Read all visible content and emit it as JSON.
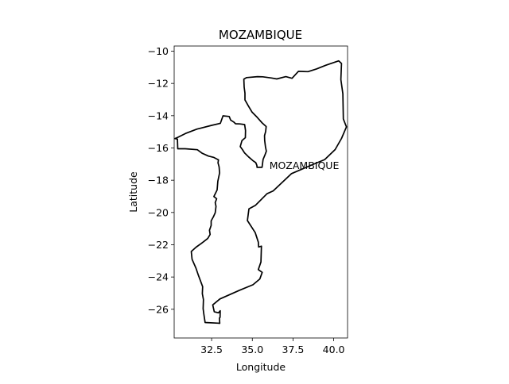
{
  "chart_data": {
    "type": "map",
    "title": "MOZAMBIQUE",
    "xlabel": "Longitude",
    "ylabel": "Latitude",
    "xlim": [
      30.2,
      40.85
    ],
    "ylim": [
      -27.78,
      -9.68
    ],
    "xticks": [
      32.5,
      35.0,
      37.5,
      40.0
    ],
    "xtick_labels": [
      "32.5",
      "35.0",
      "37.5",
      "40.0"
    ],
    "yticks": [
      -10,
      -12,
      -14,
      -16,
      -18,
      -20,
      -22,
      -24,
      -26
    ],
    "ytick_labels": [
      "−10",
      "−12",
      "−14",
      "−16",
      "−18",
      "−20",
      "−22",
      "−24",
      "−26"
    ],
    "grid": false,
    "region_label": {
      "text": "MOZAMBIQUE",
      "lon": 36.05,
      "lat": -17.3
    },
    "border_color": "#000000",
    "features": [
      {
        "type": "country-border",
        "coordinates": [
          [
            33.03,
            -26.09
          ],
          [
            33.02,
            -26.5
          ],
          [
            32.98,
            -26.55
          ],
          [
            33.0,
            -26.87
          ],
          [
            32.89,
            -26.86
          ],
          [
            32.1,
            -26.82
          ],
          [
            32.02,
            -26.3
          ],
          [
            31.98,
            -25.96
          ],
          [
            32.0,
            -25.4
          ],
          [
            31.93,
            -25.03
          ],
          [
            31.95,
            -24.6
          ],
          [
            31.69,
            -23.9
          ],
          [
            31.54,
            -23.45
          ],
          [
            31.3,
            -22.9
          ],
          [
            31.25,
            -22.42
          ],
          [
            31.55,
            -22.15
          ],
          [
            31.85,
            -21.93
          ],
          [
            32.26,
            -21.61
          ],
          [
            32.41,
            -21.36
          ],
          [
            32.37,
            -21.1
          ],
          [
            32.47,
            -20.8
          ],
          [
            32.47,
            -20.52
          ],
          [
            32.62,
            -20.25
          ],
          [
            32.72,
            -20.02
          ],
          [
            32.77,
            -19.62
          ],
          [
            32.72,
            -19.39
          ],
          [
            32.81,
            -19.15
          ],
          [
            32.64,
            -19.01
          ],
          [
            32.84,
            -18.6
          ],
          [
            32.88,
            -18.06
          ],
          [
            32.99,
            -17.55
          ],
          [
            32.96,
            -17.17
          ],
          [
            32.89,
            -16.92
          ],
          [
            32.92,
            -16.74
          ],
          [
            32.62,
            -16.58
          ],
          [
            32.3,
            -16.5
          ],
          [
            31.92,
            -16.33
          ],
          [
            31.62,
            -16.11
          ],
          [
            30.88,
            -16.05
          ],
          [
            30.42,
            -16.05
          ],
          [
            30.4,
            -15.45
          ],
          [
            30.25,
            -15.42
          ],
          [
            30.42,
            -15.34
          ],
          [
            30.9,
            -15.1
          ],
          [
            31.6,
            -14.83
          ],
          [
            32.5,
            -14.6
          ],
          [
            33.04,
            -14.47
          ],
          [
            33.2,
            -14.01
          ],
          [
            33.58,
            -14.05
          ],
          [
            33.67,
            -14.27
          ],
          [
            33.86,
            -14.39
          ],
          [
            33.97,
            -14.5
          ],
          [
            34.24,
            -14.51
          ],
          [
            34.53,
            -14.55
          ],
          [
            34.58,
            -14.92
          ],
          [
            34.57,
            -15.36
          ],
          [
            34.36,
            -15.55
          ],
          [
            34.26,
            -15.91
          ],
          [
            34.39,
            -16.1
          ],
          [
            34.52,
            -16.3
          ],
          [
            34.77,
            -16.55
          ],
          [
            35.03,
            -16.78
          ],
          [
            35.21,
            -16.91
          ],
          [
            35.28,
            -17.08
          ],
          [
            35.29,
            -17.2
          ],
          [
            35.6,
            -17.2
          ],
          [
            35.66,
            -16.71
          ],
          [
            35.78,
            -16.43
          ],
          [
            35.86,
            -16.2
          ],
          [
            35.81,
            -15.93
          ],
          [
            35.76,
            -15.54
          ],
          [
            35.75,
            -15.24
          ],
          [
            35.82,
            -14.98
          ],
          [
            35.85,
            -14.67
          ],
          [
            35.61,
            -14.45
          ],
          [
            35.3,
            -14.1
          ],
          [
            34.99,
            -13.78
          ],
          [
            34.76,
            -13.4
          ],
          [
            34.55,
            -13.02
          ],
          [
            34.55,
            -12.6
          ],
          [
            34.5,
            -12.23
          ],
          [
            34.48,
            -11.73
          ],
          [
            34.65,
            -11.64
          ],
          [
            35.32,
            -11.58
          ],
          [
            35.64,
            -11.59
          ],
          [
            36.18,
            -11.66
          ],
          [
            36.5,
            -11.72
          ],
          [
            37.06,
            -11.58
          ],
          [
            37.44,
            -11.68
          ],
          [
            37.83,
            -11.25
          ],
          [
            38.42,
            -11.27
          ],
          [
            38.94,
            -11.1
          ],
          [
            39.52,
            -10.87
          ],
          [
            40.31,
            -10.6
          ],
          [
            40.48,
            -10.76
          ],
          [
            40.44,
            -11.76
          ],
          [
            40.56,
            -12.64
          ],
          [
            40.59,
            -14.2
          ],
          [
            40.78,
            -14.69
          ],
          [
            40.48,
            -15.41
          ],
          [
            40.09,
            -16.1
          ],
          [
            39.45,
            -16.72
          ],
          [
            38.54,
            -17.1
          ],
          [
            37.41,
            -17.59
          ],
          [
            36.28,
            -18.66
          ],
          [
            35.9,
            -18.84
          ],
          [
            35.2,
            -19.55
          ],
          [
            34.79,
            -19.78
          ],
          [
            34.7,
            -20.5
          ],
          [
            35.18,
            -21.25
          ],
          [
            35.37,
            -21.84
          ],
          [
            35.39,
            -22.14
          ],
          [
            35.56,
            -22.09
          ],
          [
            35.53,
            -23.07
          ],
          [
            35.37,
            -23.54
          ],
          [
            35.61,
            -23.71
          ],
          [
            35.46,
            -24.12
          ],
          [
            35.04,
            -24.48
          ],
          [
            34.22,
            -24.82
          ],
          [
            33.01,
            -25.36
          ],
          [
            32.57,
            -25.73
          ],
          [
            32.66,
            -26.15
          ],
          [
            32.92,
            -26.22
          ],
          [
            33.03,
            -26.09
          ]
        ]
      }
    ]
  }
}
